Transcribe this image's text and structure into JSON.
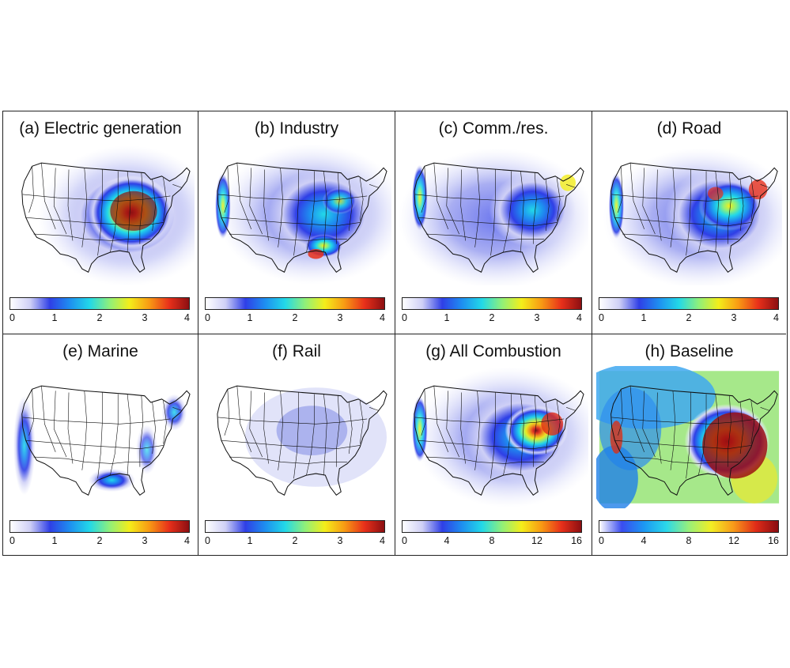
{
  "colors": {
    "ramp_linear": [
      "#ffffff",
      "#cfd0f6",
      "#2f3fe6",
      "#1e8ff0",
      "#22d8e8",
      "#8ff07a",
      "#f4ee1a",
      "#f89a14",
      "#e8301a",
      "#8c0f12"
    ],
    "ramp_baseline": [
      "#ffffff",
      "#3a4cf0",
      "#1c98f2",
      "#2bd8ea",
      "#98f07a",
      "#f2ee24",
      "#f89a1a",
      "#e02c18",
      "#8a0d12"
    ],
    "border": "#222222",
    "state_lines": "#111111"
  },
  "panels": [
    {
      "title": "(a) Electric generation",
      "ticks": [
        "0",
        "1",
        "2",
        "3",
        "4"
      ],
      "pattern": "electric"
    },
    {
      "title": "(b) Industry",
      "ticks": [
        "0",
        "1",
        "2",
        "3",
        "4"
      ],
      "pattern": "industry"
    },
    {
      "title": "(c) Comm./res.",
      "ticks": [
        "0",
        "1",
        "2",
        "3",
        "4"
      ],
      "pattern": "commres"
    },
    {
      "title": "(d) Road",
      "ticks": [
        "0",
        "1",
        "2",
        "3",
        "4"
      ],
      "pattern": "road"
    },
    {
      "title": "(e) Marine",
      "ticks": [
        "0",
        "1",
        "2",
        "3",
        "4"
      ],
      "pattern": "marine"
    },
    {
      "title": "(f) Rail",
      "ticks": [
        "0",
        "1",
        "2",
        "3",
        "4"
      ],
      "pattern": "rail"
    },
    {
      "title": "(g)  All Combustion",
      "ticks": [
        "0",
        "4",
        "8",
        "12",
        "16"
      ],
      "pattern": "all"
    },
    {
      "title": "(h) Baseline",
      "ticks": [
        "0",
        "4",
        "8",
        "12",
        "16"
      ],
      "pattern": "baseline"
    }
  ]
}
